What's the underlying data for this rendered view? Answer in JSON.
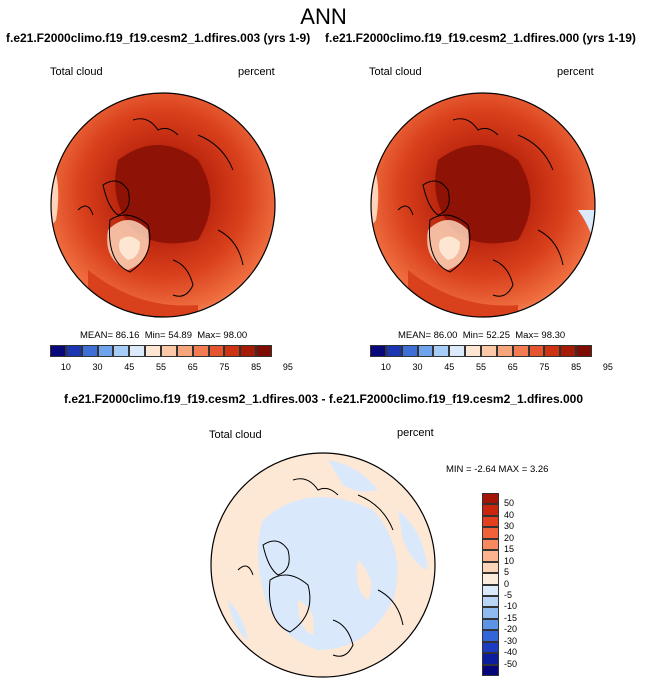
{
  "title": "ANN",
  "panels": [
    {
      "run_title": "f.e21.F2000climo.f19_f19.cesm2_1.dfires.003 (yrs 1-9)",
      "variable": "Total cloud",
      "units": "percent",
      "stats": {
        "mean_label": "MEAN=",
        "mean": "86.16",
        "min_label": "Min=",
        "min": "54.89",
        "max_label": "Max=",
        "max": "98.00"
      }
    },
    {
      "run_title": "f.e21.F2000climo.f19_f19.cesm2_1.dfires.000 (yrs 1-19)",
      "variable": "Total cloud",
      "units": "percent",
      "stats": {
        "mean_label": "MEAN=",
        "mean": "86.00",
        "min_label": "Min=",
        "min": "52.25",
        "max_label": "Max=",
        "max": "98.30"
      }
    }
  ],
  "colorbar": {
    "colors": [
      "#08087a",
      "#1c35b0",
      "#3d6fd6",
      "#6fa3ec",
      "#a6cdf5",
      "#dbeafb",
      "#fde6d2",
      "#fcc8a6",
      "#f8a57c",
      "#f27b52",
      "#e6532f",
      "#cd3212",
      "#a61b05",
      "#7d0d02"
    ],
    "labels": [
      "10",
      "30",
      "45",
      "55",
      "65",
      "75",
      "85",
      "95"
    ]
  },
  "diff": {
    "title": "f.e21.F2000climo.f19_f19.cesm2_1.dfires.003 - f.e21.F2000climo.f19_f19.cesm2_1.dfires.000",
    "variable": "Total cloud",
    "units": "percent",
    "stats": {
      "min_label": "MIN =",
      "min": "-2.64",
      "max_label": "MAX =",
      "max": "3.26"
    },
    "colorbar": {
      "colors": [
        "#a31606",
        "#c8260e",
        "#e2401e",
        "#f2623a",
        "#f98a60",
        "#fcb38e",
        "#fdd4b8",
        "#fdebdc",
        "#dcebfb",
        "#b9d6f6",
        "#8fbbf0",
        "#5d95e6",
        "#3366d9",
        "#1c3cc2",
        "#0c1e9e",
        "#04067a"
      ],
      "labels": [
        "50",
        "40",
        "30",
        "20",
        "15",
        "10",
        "5",
        "0",
        "-5",
        "-10",
        "-15",
        "-20",
        "-30",
        "-40",
        "-50"
      ]
    },
    "colors": {
      "positive": "#fde8d6",
      "negative": "#d9e8fb"
    }
  },
  "map_colors": {
    "deep": "#8e1205",
    "dark": "#b8230c",
    "mid": "#d9401c",
    "light": "#ef6d3f",
    "pale": "#f7a27a",
    "paler": "#fcd3b8"
  }
}
